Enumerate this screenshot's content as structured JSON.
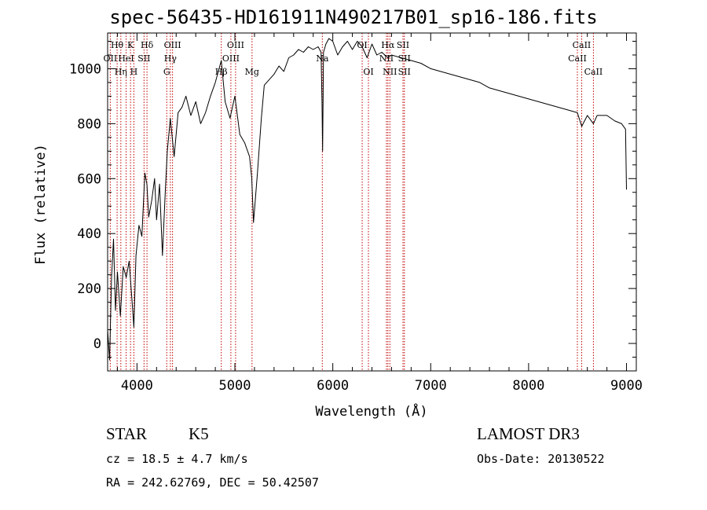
{
  "title": "spec-56435-HD161911N490217B01_sp16-186.fits",
  "footer": {
    "class_label": "STAR",
    "subclass": "K5",
    "survey": "LAMOST DR3",
    "cz": "cz = 18.5 ± 4.7 km/s",
    "obs_date": "Obs-Date: 20130522",
    "coords": "RA = 242.62769, DEC =  50.42507"
  },
  "chart_data": {
    "type": "line",
    "title": "spec-56435-HD161911N490217B01_sp16-186.fits",
    "xlabel": "Wavelength (Å)",
    "ylabel": "Flux (relative)",
    "xlim": [
      3700,
      9100
    ],
    "ylim": [
      -100,
      1130
    ],
    "xticks": [
      4000,
      5000,
      6000,
      7000,
      8000,
      9000
    ],
    "yticks": [
      0,
      200,
      400,
      600,
      800,
      1000
    ],
    "series": [
      {
        "name": "spectrum",
        "x": [
          3700,
          3720,
          3740,
          3760,
          3780,
          3800,
          3830,
          3860,
          3890,
          3920,
          3950,
          3968,
          3990,
          4020,
          4050,
          4080,
          4101,
          4120,
          4150,
          4180,
          4200,
          4230,
          4260,
          4290,
          4310,
          4340,
          4380,
          4420,
          4460,
          4500,
          4550,
          4600,
          4650,
          4700,
          4750,
          4800,
          4861,
          4900,
          4950,
          5000,
          5050,
          5100,
          5150,
          5172,
          5190,
          5230,
          5270,
          5300,
          5350,
          5400,
          5450,
          5500,
          5550,
          5600,
          5650,
          5700,
          5750,
          5800,
          5850,
          5880,
          5890,
          5896,
          5905,
          5930,
          5960,
          6000,
          6050,
          6100,
          6150,
          6200,
          6250,
          6300,
          6350,
          6400,
          6450,
          6500,
          6563,
          6600,
          6700,
          6800,
          6900,
          7000,
          7100,
          7200,
          7300,
          7400,
          7500,
          7600,
          7700,
          7800,
          7900,
          8000,
          8100,
          8200,
          8300,
          8400,
          8498,
          8542,
          8600,
          8662,
          8700,
          8800,
          8880,
          8950,
          8990,
          9000
        ],
        "values": [
          50,
          -60,
          240,
          380,
          120,
          260,
          100,
          280,
          240,
          300,
          150,
          60,
          320,
          430,
          390,
          620,
          580,
          460,
          520,
          600,
          450,
          580,
          320,
          560,
          700,
          820,
          680,
          840,
          860,
          900,
          830,
          880,
          800,
          840,
          900,
          950,
          1030,
          880,
          820,
          900,
          760,
          730,
          680,
          600,
          440,
          620,
          820,
          940,
          960,
          980,
          1010,
          990,
          1040,
          1050,
          1070,
          1060,
          1080,
          1070,
          1080,
          1060,
          880,
          700,
          1060,
          1090,
          1110,
          1100,
          1050,
          1080,
          1100,
          1070,
          1100,
          1080,
          1040,
          1090,
          1050,
          1060,
          1040,
          1050,
          1040,
          1030,
          1020,
          1000,
          990,
          980,
          970,
          960,
          950,
          930,
          920,
          910,
          900,
          890,
          880,
          870,
          860,
          850,
          840,
          790,
          830,
          800,
          830,
          830,
          810,
          800,
          780,
          560
        ]
      }
    ],
    "lines": [
      {
        "label": "Hθ",
        "wave": 3797,
        "row": 1
      },
      {
        "label": "OII",
        "wave": 3727,
        "row": 2
      },
      {
        "label": "Hη",
        "wave": 3835,
        "row": 3
      },
      {
        "label": "HeI",
        "wave": 3889,
        "row": 2
      },
      {
        "label": "K",
        "wave": 3934,
        "row": 1
      },
      {
        "label": "H",
        "wave": 3968,
        "row": 3
      },
      {
        "label": "SII",
        "wave": 4072,
        "row": 2
      },
      {
        "label": "Hδ",
        "wave": 4102,
        "row": 1
      },
      {
        "label": "OIII",
        "wave": 4363,
        "row": 1
      },
      {
        "label": "Hγ",
        "wave": 4341,
        "row": 2
      },
      {
        "label": "G",
        "wave": 4304,
        "row": 3
      },
      {
        "label": "Hβ",
        "wave": 4861,
        "row": 3
      },
      {
        "label": "OIII",
        "wave": 5007,
        "row": 1
      },
      {
        "label": "OIII",
        "wave": 4959,
        "row": 2
      },
      {
        "label": "Mg",
        "wave": 5175,
        "row": 3
      },
      {
        "label": "Na",
        "wave": 5893,
        "row": 2
      },
      {
        "label": "OI",
        "wave": 6300,
        "row": 1
      },
      {
        "label": "NII",
        "wave": 6548,
        "row": 2
      },
      {
        "label": "OI",
        "wave": 6364,
        "row": 3
      },
      {
        "label": "Hα",
        "wave": 6563,
        "row": 1
      },
      {
        "label": "NII",
        "wave": 6583,
        "row": 3
      },
      {
        "label": "SII",
        "wave": 6717,
        "row": 1
      },
      {
        "label": "SII",
        "wave": 6731,
        "row": 2
      },
      {
        "label": "SII",
        "wave": 6731,
        "row": 3
      },
      {
        "label": "CaII",
        "wave": 8542,
        "row": 1
      },
      {
        "label": "CaII",
        "wave": 8498,
        "row": 2
      },
      {
        "label": "CaII",
        "wave": 8662,
        "row": 3
      }
    ]
  }
}
